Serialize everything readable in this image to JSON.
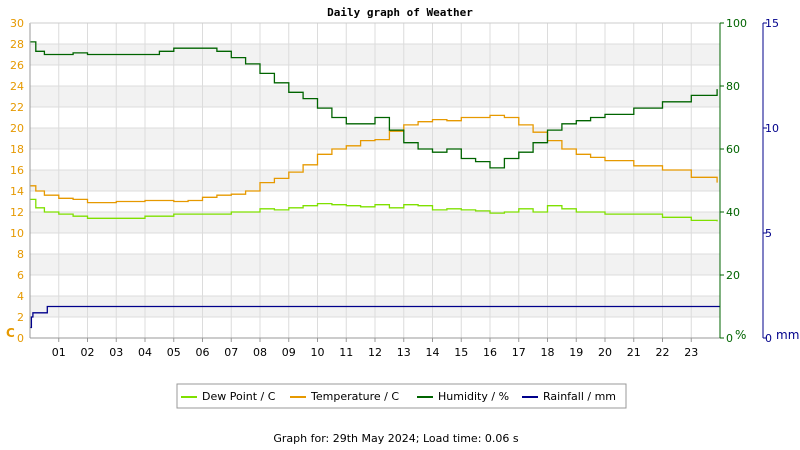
{
  "chart_data": {
    "type": "line",
    "title": "Daily graph of Weather",
    "footer": "Graph for: 29th May 2024; Load time: 0.06 s",
    "x_ticks": [
      "01",
      "02",
      "03",
      "04",
      "05",
      "06",
      "07",
      "08",
      "09",
      "10",
      "11",
      "12",
      "13",
      "14",
      "15",
      "16",
      "17",
      "18",
      "19",
      "20",
      "21",
      "22",
      "23"
    ],
    "x_range": [
      0,
      24
    ],
    "axes": {
      "left": {
        "unit": "C",
        "range": [
          0,
          30
        ],
        "ticks": [
          "0",
          "2",
          "4",
          "6",
          "8",
          "10",
          "12",
          "14",
          "16",
          "18",
          "20",
          "22",
          "24",
          "26",
          "28",
          "30"
        ],
        "color": "#e69900"
      },
      "right1": {
        "unit": "%",
        "range": [
          0,
          100
        ],
        "ticks": [
          "0",
          "20",
          "40",
          "60",
          "80",
          "100"
        ],
        "color": "#006400"
      },
      "right2": {
        "unit": "mm",
        "range": [
          0,
          15
        ],
        "ticks": [
          "0",
          "5",
          "10",
          "15"
        ],
        "color": "#00008b"
      }
    },
    "grid": true,
    "legend_position": "bottom",
    "series": [
      {
        "name": "Dew Point / C",
        "axis": "left",
        "color": "#7fe000",
        "x": [
          0,
          0.2,
          0.5,
          1,
          1.5,
          2,
          3,
          4,
          5,
          6,
          7,
          7.5,
          8,
          8.5,
          9,
          9.5,
          10,
          10.5,
          11,
          11.5,
          12,
          12.5,
          13,
          13.5,
          14,
          14.5,
          15,
          15.5,
          16,
          16.5,
          17,
          17.5,
          18,
          18.5,
          19,
          19.5,
          20,
          21,
          22,
          23,
          23.9
        ],
        "y": [
          13.2,
          12.4,
          12.0,
          11.8,
          11.6,
          11.4,
          11.4,
          11.6,
          11.8,
          11.8,
          12.0,
          12.0,
          12.3,
          12.2,
          12.4,
          12.6,
          12.8,
          12.7,
          12.6,
          12.5,
          12.7,
          12.4,
          12.7,
          12.6,
          12.2,
          12.3,
          12.2,
          12.1,
          11.9,
          12.0,
          12.3,
          12.0,
          12.6,
          12.3,
          12.0,
          12.0,
          11.8,
          11.8,
          11.5,
          11.2,
          11.1
        ]
      },
      {
        "name": "Temperature / C",
        "axis": "left",
        "color": "#e69900",
        "x": [
          0,
          0.2,
          0.5,
          1,
          1.5,
          2,
          3,
          4,
          5,
          5.5,
          6,
          6.5,
          7,
          7.5,
          8,
          8.5,
          9,
          9.5,
          10,
          10.5,
          11,
          11.5,
          12,
          12.5,
          13,
          13.5,
          14,
          14.5,
          15,
          15.5,
          16,
          16.5,
          17,
          17.5,
          18,
          18.5,
          19,
          19.5,
          20,
          21,
          22,
          23,
          23.9
        ],
        "y": [
          14.5,
          14.0,
          13.6,
          13.3,
          13.2,
          12.9,
          13.0,
          13.1,
          13.0,
          13.1,
          13.4,
          13.6,
          13.7,
          14.0,
          14.8,
          15.2,
          15.8,
          16.5,
          17.5,
          18.0,
          18.3,
          18.8,
          18.9,
          19.7,
          20.3,
          20.6,
          20.8,
          20.7,
          21.0,
          21.0,
          21.2,
          21.0,
          20.3,
          19.6,
          18.8,
          18.0,
          17.5,
          17.2,
          16.9,
          16.4,
          16.0,
          15.3,
          14.8
        ]
      },
      {
        "name": "Humidity / %",
        "axis": "right1",
        "color": "#006400",
        "x": [
          0,
          0.2,
          0.5,
          1,
          1.5,
          2,
          3,
          4,
          4.5,
          5,
          5.5,
          6,
          6.5,
          7,
          7.5,
          8,
          8.5,
          9,
          9.5,
          10,
          10.5,
          11,
          11.5,
          12,
          12.5,
          13,
          13.5,
          14,
          14.5,
          15,
          15.5,
          16,
          16.5,
          17,
          17.5,
          18,
          18.5,
          19,
          19.5,
          20,
          21,
          22,
          23,
          23.9
        ],
        "y": [
          94,
          91,
          90,
          90,
          90.5,
          90,
          90,
          90,
          91,
          92,
          92,
          92,
          91,
          89,
          87,
          84,
          81,
          78,
          76,
          73,
          70,
          68,
          68,
          70,
          66,
          62,
          60,
          59,
          60,
          57,
          56,
          54,
          57,
          59,
          62,
          66,
          68,
          69,
          70,
          71,
          73,
          75,
          77,
          79
        ]
      },
      {
        "name": "Rainfall / mm",
        "axis": "right2",
        "color": "#00008b",
        "x": [
          0,
          0.05,
          0.1,
          0.5,
          0.6,
          24
        ],
        "y": [
          0.5,
          1.0,
          1.2,
          1.2,
          1.5,
          1.5
        ]
      }
    ]
  }
}
